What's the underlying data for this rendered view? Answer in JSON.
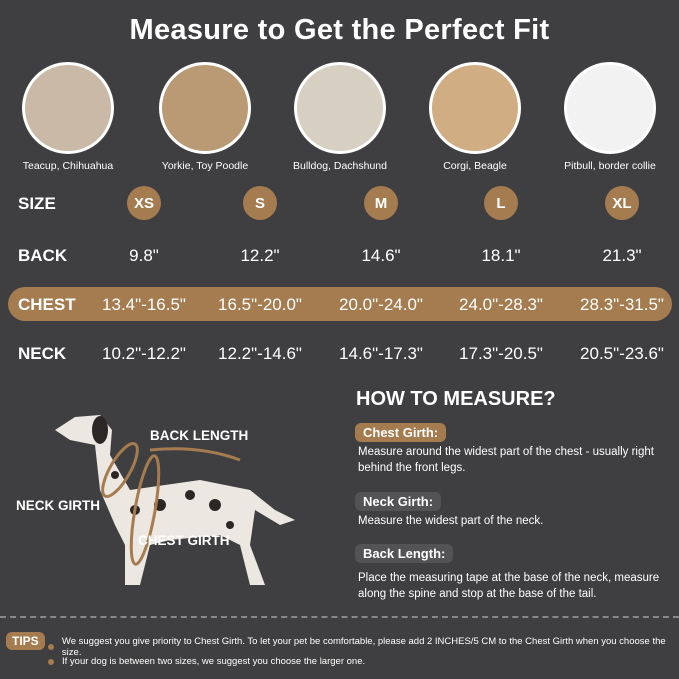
{
  "title": "Measure to Get the Perfect Fit",
  "breeds": [
    "Teacup, Chihuahua",
    "Yorkie, Toy Poodle",
    "Bulldog, Dachshund",
    "Corgi, Beagle",
    "Pitbull, border collie"
  ],
  "table": {
    "size_label": "SIZE",
    "sizes": [
      "XS",
      "S",
      "M",
      "L",
      "XL"
    ],
    "back_label": "BACK",
    "back": [
      "9.8\"",
      "12.2\"",
      "14.6\"",
      "18.1\"",
      "21.3\""
    ],
    "chest_label": "CHEST",
    "chest": [
      "13.4\"-16.5\"",
      "16.5\"-20.0\"",
      "20.0\"-24.0\"",
      "24.0\"-28.3\"",
      "28.3\"-31.5\""
    ],
    "neck_label": "NECK",
    "neck": [
      "10.2\"-12.2\"",
      "12.2\"-14.6\"",
      "14.6\"-17.3\"",
      "17.3\"-20.5\"",
      "20.5\"-23.6\""
    ]
  },
  "diagram": {
    "back_length": "BACK LENGTH",
    "neck_girth": "NECK GIRTH",
    "chest_girth": "CHEST GIRTH"
  },
  "how_to": {
    "title": "HOW TO MEASURE?",
    "items": [
      {
        "label": "Chest Girth:",
        "text": "Measure around the widest part of the chest - usually right behind the front legs."
      },
      {
        "label": "Neck Girth:",
        "text": "Measure the widest part of the neck."
      },
      {
        "label": "Back Length:",
        "text": "Place the measuring tape at the base of the neck, measure along the spine and stop at the base of the tail."
      }
    ]
  },
  "tips": {
    "label": "TIPS",
    "items": [
      "We suggest you give priority to Chest Girth. To let your pet be comfortable, please add 2 INCHES/5 CM to the Chest Girth when you choose the size.",
      "If your dog is between two sizes, we suggest you choose the larger one."
    ]
  },
  "colors": {
    "background": "#3f3f41",
    "accent": "#a57c4f",
    "pill": "#535355"
  }
}
